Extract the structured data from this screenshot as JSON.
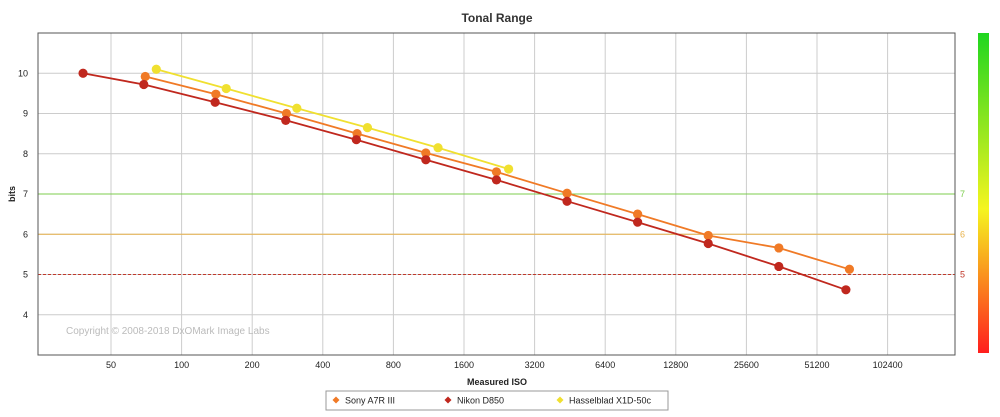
{
  "chart_data": {
    "type": "line",
    "title": "Tonal Range",
    "xlabel": "Measured ISO",
    "ylabel": "bits",
    "x_scale": "log2",
    "x_ticks": [
      "50",
      "100",
      "200",
      "400",
      "800",
      "1600",
      "3200",
      "6400",
      "12800",
      "25600",
      "51200",
      "102400"
    ],
    "y_ticks": [
      "4",
      "5",
      "6",
      "7",
      "8",
      "9",
      "10"
    ],
    "ylim": [
      3,
      11
    ],
    "grid": true,
    "copyright": "Copyright © 2008-2018 DxOMark Image Labs",
    "thresholds": [
      {
        "label": "7",
        "value": 7,
        "color": "#7ccc4e"
      },
      {
        "label": "6",
        "value": 6,
        "color": "#e8b24a"
      },
      {
        "label": "5",
        "value": 5,
        "color": "#c0392b"
      }
    ],
    "colorbar": {
      "top_color": "#1fd61f",
      "mid_color": "#f5f51f",
      "bottom_color": "#ff1e1e"
    },
    "legend_position": "bottom-center",
    "series": [
      {
        "name": "Sony A7R III",
        "color": "#f07a26",
        "points": [
          {
            "x": 70,
            "y": 9.92
          },
          {
            "x": 140,
            "y": 9.48
          },
          {
            "x": 280,
            "y": 9.0
          },
          {
            "x": 560,
            "y": 8.5
          },
          {
            "x": 1100,
            "y": 8.02
          },
          {
            "x": 2200,
            "y": 7.55
          },
          {
            "x": 4400,
            "y": 7.02
          },
          {
            "x": 8800,
            "y": 6.5
          },
          {
            "x": 17600,
            "y": 5.97
          },
          {
            "x": 35200,
            "y": 5.66
          },
          {
            "x": 70400,
            "y": 5.13
          }
        ]
      },
      {
        "name": "Nikon D850",
        "color": "#c0281e",
        "points": [
          {
            "x": 38,
            "y": 10.0
          },
          {
            "x": 69,
            "y": 9.72
          },
          {
            "x": 139,
            "y": 9.28
          },
          {
            "x": 278,
            "y": 8.83
          },
          {
            "x": 556,
            "y": 8.35
          },
          {
            "x": 1100,
            "y": 7.85
          },
          {
            "x": 2200,
            "y": 7.35
          },
          {
            "x": 4400,
            "y": 6.82
          },
          {
            "x": 8800,
            "y": 6.3
          },
          {
            "x": 17600,
            "y": 5.77
          },
          {
            "x": 35200,
            "y": 5.2
          },
          {
            "x": 68000,
            "y": 4.62
          }
        ]
      },
      {
        "name": "Hasselblad X1D-50c",
        "color": "#f0e030",
        "points": [
          {
            "x": 78,
            "y": 10.1
          },
          {
            "x": 155,
            "y": 9.62
          },
          {
            "x": 310,
            "y": 9.13
          },
          {
            "x": 620,
            "y": 8.65
          },
          {
            "x": 1240,
            "y": 8.15
          },
          {
            "x": 2480,
            "y": 7.62
          }
        ]
      }
    ]
  }
}
